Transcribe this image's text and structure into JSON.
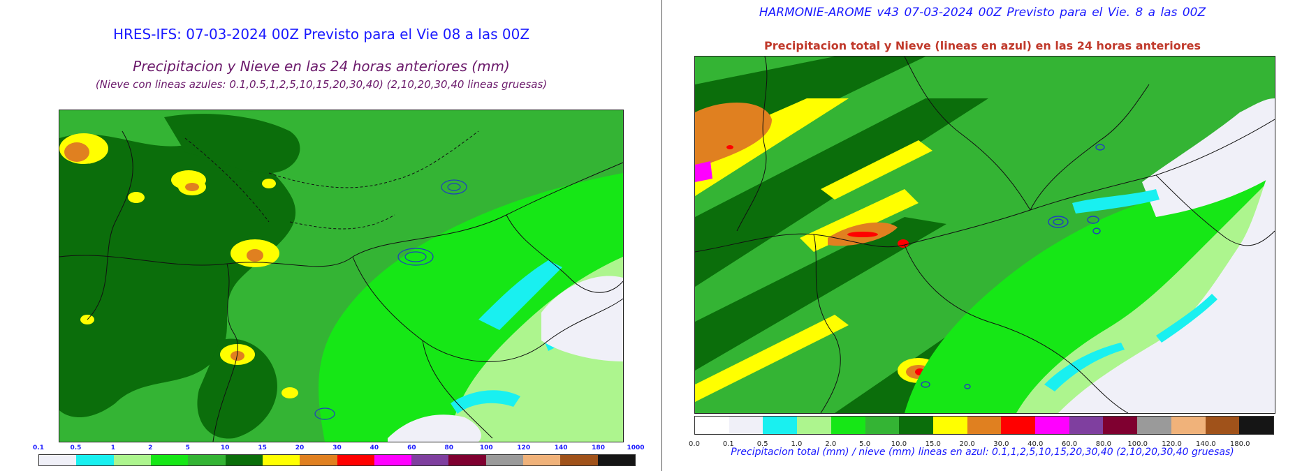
{
  "left": {
    "title": "HRES-IFS: 07-03-2024 00Z Previsto para el Vie 08 a las 00Z",
    "subtitle": "Precipitacion y Nieve en las 24 horas anteriores (mm)",
    "note": "(Nieve con lineas azules: 0.1,0.5,1,2,5,10,15,20,30,40)  (2,10,20,30,40 lineas gruesas)",
    "colorbar_ticks": [
      "0.1",
      "0.5",
      "1",
      "2",
      "5",
      "10",
      "15",
      "20",
      "30",
      "40",
      "60",
      "80",
      "100",
      "120",
      "140",
      "180",
      "1000"
    ],
    "colorbar_colors": [
      "#f0f0f8",
      "#19f0f0",
      "#adf58e",
      "#16e716",
      "#34b434",
      "#0b6e0b",
      "#ffff00",
      "#e08020",
      "#ff0000",
      "#ff00ff",
      "#7f3f9f",
      "#7f0030",
      "#9a9a9a",
      "#f0b27a",
      "#a0521a",
      "#151515"
    ]
  },
  "right": {
    "title": "HARMONIE-AROME v43     07-03-2024 00Z     Previsto para el Vie. 8 a las 00Z",
    "subtitle": "Precipitacion total y Nieve (lineas en azul) en las 24 horas anteriores",
    "note": "Precipitacion total (mm) / nieve (mm) lineas en azul: 0.1,1,2,5,10,15,20,30,40  (2,10,20,30,40 gruesas)",
    "colorbar_ticks": [
      "0.0",
      "0.1",
      "0.5",
      "1.0",
      "2.0",
      "5.0",
      "10.0",
      "15.0",
      "20.0",
      "30.0",
      "40.0",
      "60.0",
      "80.0",
      "100.0",
      "120.0",
      "140.0",
      "180.0"
    ],
    "colorbar_colors": [
      "#ffffff",
      "#f0f0f8",
      "#19f0f0",
      "#adf58e",
      "#16e716",
      "#34b434",
      "#0b6e0b",
      "#ffff00",
      "#e08020",
      "#ff0000",
      "#ff00ff",
      "#7f3f9f",
      "#7f0030",
      "#9a9a9a",
      "#f0b27a",
      "#a0521a",
      "#151515"
    ]
  },
  "map_colors": {
    "dark_green": "#0b6e0b",
    "mid_green": "#34b434",
    "bright_green": "#16e716",
    "light_green": "#adf58e",
    "cyan": "#19f0f0",
    "pale": "#f0f0f8",
    "yellow": "#ffff00",
    "orange": "#e08020",
    "red": "#ff0000",
    "magenta": "#ff00ff",
    "snow_line": "#1f3fbf"
  }
}
